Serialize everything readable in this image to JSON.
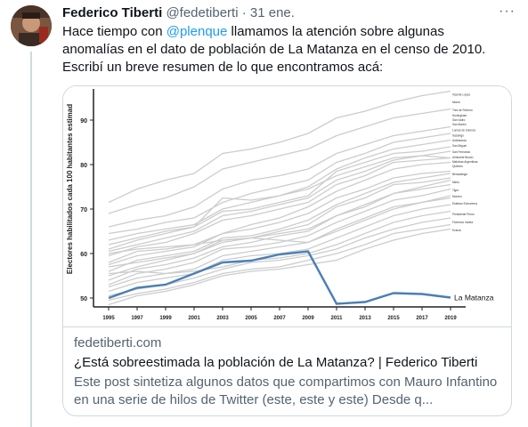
{
  "tweet": {
    "author_name": "Federico Tiberti",
    "handle": "@fedetiberti",
    "separator": "·",
    "date": "31 ene.",
    "more": "···",
    "text_before_mention": "Hace tiempo con ",
    "mention": "@plenque",
    "text_after_mention": " llamamos la atención sobre algunas anomalías en el dato de población de La Matanza en el censo de 2010. Escribí un breve resumen de lo que encontramos acá:"
  },
  "card": {
    "domain": "fedetiberti.com",
    "title": "¿Está sobreestimada la población de La Matanza? | Federico Tiberti",
    "description": "Este post sintetiza algunos datos que compartimos con Mauro Infantino en una serie de hilos de Twitter (este, este y este) Desde q..."
  },
  "chart_data": {
    "type": "line",
    "ylabel": "Electores habilitados cada 100 habitantes estimad",
    "x": [
      1995,
      1997,
      1999,
      2001,
      2003,
      2005,
      2007,
      2009,
      2011,
      2013,
      2015,
      2017,
      2019
    ],
    "ylim": [
      48,
      97
    ],
    "yticks": [
      50,
      60,
      70,
      80,
      90
    ],
    "highlight_color": "#4a7fb5",
    "background_color": "#cccccc",
    "series": [
      {
        "name": "La Matanza",
        "values": [
          50.0,
          52.3,
          53.0,
          55.5,
          58.0,
          58.4,
          59.8,
          60.5,
          48.7,
          49.1,
          51.1,
          50.9,
          50.1
        ]
      }
    ],
    "background_series": [
      [
        71.5,
        74.5,
        76.5,
        78.0,
        82.5,
        83.5,
        85.0,
        87.0,
        90.5,
        92.0,
        94.0,
        95.5,
        96.5
      ],
      [
        69.0,
        71.0,
        72.5,
        75.0,
        79.0,
        80.5,
        82.0,
        83.5,
        86.5,
        88.5,
        90.5,
        91.5,
        92.5
      ],
      [
        66.0,
        67.5,
        68.5,
        70.5,
        74.5,
        76.5,
        77.5,
        79.0,
        82.5,
        84.5,
        86.5,
        87.5,
        88.5
      ],
      [
        64.5,
        65.5,
        67.0,
        68.0,
        71.5,
        73.5,
        75.0,
        76.5,
        80.5,
        82.5,
        85.0,
        86.0,
        87.0
      ],
      [
        63.0,
        64.5,
        65.5,
        66.5,
        70.0,
        71.5,
        73.0,
        75.0,
        79.0,
        81.5,
        83.5,
        84.5,
        85.5
      ],
      [
        62.0,
        63.5,
        65.0,
        66.0,
        69.5,
        70.0,
        71.5,
        73.0,
        78.5,
        80.5,
        82.5,
        83.0,
        84.0
      ],
      [
        60.5,
        62.0,
        63.5,
        65.0,
        68.5,
        69.5,
        71.0,
        72.5,
        76.5,
        78.5,
        81.0,
        82.0,
        83.0
      ],
      [
        61.0,
        63.0,
        64.5,
        66.0,
        72.5,
        72.0,
        73.0,
        74.5,
        77.5,
        79.5,
        81.5,
        82.0,
        81.5
      ],
      [
        59.5,
        61.5,
        62.5,
        64.5,
        67.5,
        68.5,
        70.0,
        71.5,
        75.5,
        77.5,
        80.5,
        81.0,
        81.5
      ],
      [
        58.0,
        60.5,
        61.0,
        62.0,
        64.5,
        66.5,
        68.0,
        70.5,
        74.0,
        76.5,
        79.0,
        80.0,
        80.5
      ],
      [
        57.5,
        59.5,
        60.5,
        61.5,
        64.5,
        65.5,
        67.0,
        69.0,
        72.5,
        74.5,
        77.0,
        78.0,
        78.5
      ],
      [
        56.0,
        58.5,
        59.5,
        60.5,
        63.5,
        64.0,
        65.5,
        67.5,
        71.0,
        73.5,
        76.0,
        77.0,
        78.0
      ],
      [
        55.0,
        57.0,
        58.5,
        60.0,
        62.5,
        63.5,
        65.0,
        66.5,
        70.5,
        72.5,
        75.5,
        76.0,
        77.0
      ],
      [
        57.0,
        58.0,
        59.0,
        60.0,
        63.0,
        63.5,
        64.5,
        65.5,
        68.5,
        70.5,
        73.5,
        75.0,
        76.5
      ],
      [
        54.0,
        56.5,
        57.5,
        59.0,
        61.5,
        62.5,
        64.0,
        65.0,
        68.5,
        71.0,
        73.5,
        74.5,
        75.5
      ],
      [
        53.0,
        55.5,
        56.5,
        58.0,
        61.0,
        61.5,
        62.5,
        64.0,
        67.0,
        69.5,
        72.0,
        73.0,
        74.5
      ],
      [
        60.0,
        61.0,
        61.5,
        62.0,
        63.0,
        63.5,
        63.0,
        62.5,
        65.0,
        67.5,
        70.0,
        71.5,
        73.0
      ],
      [
        52.5,
        54.5,
        55.5,
        56.5,
        59.5,
        60.5,
        61.5,
        62.5,
        65.5,
        68.0,
        70.5,
        71.5,
        72.5
      ],
      [
        51.5,
        53.5,
        54.5,
        55.5,
        58.5,
        59.5,
        60.0,
        61.0,
        63.5,
        66.0,
        68.5,
        70.0,
        71.0
      ],
      [
        55.5,
        56.0,
        55.5,
        56.0,
        57.0,
        58.5,
        59.0,
        60.0,
        62.0,
        64.5,
        67.0,
        68.5,
        69.5
      ],
      [
        50.5,
        52.0,
        53.0,
        54.5,
        56.5,
        58.0,
        58.5,
        59.5,
        61.0,
        63.5,
        65.5,
        67.0,
        68.0
      ],
      [
        49.5,
        51.0,
        52.0,
        53.5,
        55.5,
        56.5,
        57.0,
        58.5,
        60.0,
        62.0,
        64.5,
        65.5,
        66.5
      ],
      [
        48.5,
        50.5,
        51.5,
        53.0,
        55.0,
        56.0,
        56.5,
        57.5,
        58.5,
        61.0,
        63.0,
        64.5,
        65.5
      ]
    ],
    "right_labels": [
      "Vicente López",
      "Morón",
      "Tres de Febrero",
      "Hurlingham",
      "San Isidro",
      "San Martín",
      "Lomas de Zamora",
      "Ituzaingó",
      "Avellaneda",
      "San Miguel",
      "San Fernando",
      "Almirante Brown",
      "Malvinas Argentinas",
      "Quilmes",
      "Berazategui",
      "Merlo",
      "Tigre",
      "Moreno",
      "Esteban Echeverría",
      "Presidente Perón",
      "Florencio Varela",
      "Ezeiza",
      "La Matanza"
    ],
    "right_label_values": [
      95.5,
      93.8,
      92.0,
      90.8,
      89.8,
      88.8,
      87.5,
      86.3,
      85.2,
      84.0,
      82.6,
      81.4,
      80.4,
      79.4,
      77.6,
      75.8,
      74.0,
      72.6,
      71.0,
      68.6,
      66.8,
      65.0,
      50.1
    ]
  }
}
